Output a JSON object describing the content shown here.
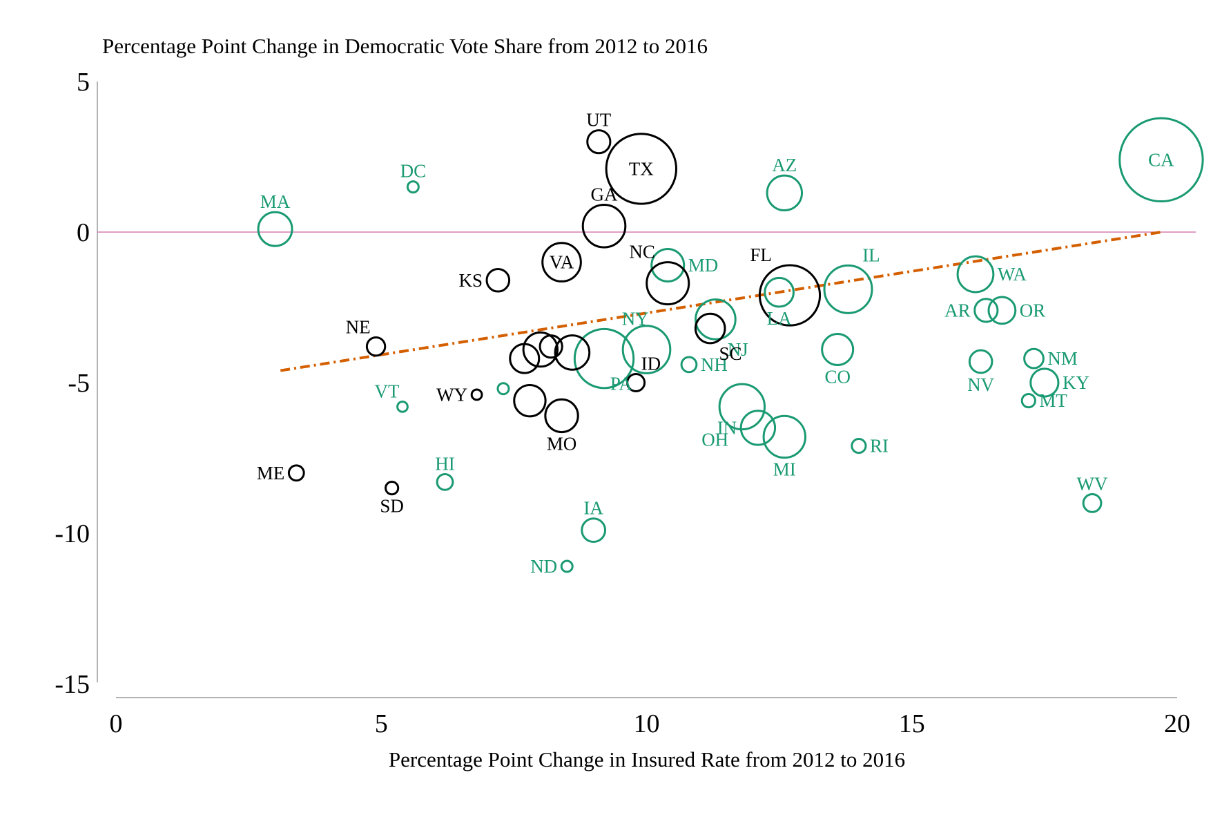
{
  "chart_data": {
    "type": "scatter",
    "title": "Percentage Point Change in Democratic Vote Share from 2012 to 2016",
    "xlabel": "Percentage Point Change in Insured Rate from 2012 to 2016",
    "ylabel": "",
    "xlim": [
      0,
      20
    ],
    "ylim": [
      -15,
      5
    ],
    "xticks": [
      "0",
      "5",
      "10",
      "15",
      "20"
    ],
    "yticks": [
      "5",
      "0",
      "-5",
      "-10",
      "-15"
    ],
    "colors": {
      "group_a": "#000000",
      "group_b": "#1a9a72",
      "trend": "#d45f00",
      "zero_line": "#d67fb0"
    },
    "trendline": {
      "x": [
        3.1,
        19.7
      ],
      "y": [
        -4.6,
        0.0
      ]
    },
    "points": [
      {
        "label": "MA",
        "x": 3.0,
        "y": 0.1,
        "size": 6.5,
        "group": "b",
        "label_pos": "above"
      },
      {
        "label": "DC",
        "x": 5.6,
        "y": 1.5,
        "size": 0.7,
        "group": "b",
        "label_pos": "above"
      },
      {
        "label": "VT",
        "x": 5.4,
        "y": -5.8,
        "size": 0.6,
        "group": "b",
        "label_pos": "above-left"
      },
      {
        "label": "HI",
        "x": 6.2,
        "y": -8.3,
        "size": 1.4,
        "group": "b",
        "label_pos": "above"
      },
      {
        "label": "IA",
        "x": 9.0,
        "y": -9.9,
        "size": 3.1,
        "group": "b",
        "label_pos": "above"
      },
      {
        "label": "ND",
        "x": 8.5,
        "y": -11.1,
        "size": 0.7,
        "group": "b",
        "label_pos": "left"
      },
      {
        "label": "NY",
        "x": 9.2,
        "y": -4.2,
        "size": 19.8,
        "group": "b",
        "label_pos": "above-right"
      },
      {
        "label": "PA",
        "x": 10.0,
        "y": -3.9,
        "size": 12.8,
        "group": "b",
        "label_pos": "below-left"
      },
      {
        "label": "MD",
        "x": 10.4,
        "y": -1.1,
        "size": 6.0,
        "group": "b",
        "label_pos": "right"
      },
      {
        "label": "NH",
        "x": 10.8,
        "y": -4.4,
        "size": 1.3,
        "group": "b",
        "label_pos": "right"
      },
      {
        "label": "NJ",
        "x": 11.3,
        "y": -2.9,
        "size": 9.0,
        "group": "b",
        "label_pos": "below-right"
      },
      {
        "label": "OH",
        "x": 11.8,
        "y": -5.8,
        "size": 11.6,
        "group": "b",
        "label_pos": "below-left"
      },
      {
        "label": "IN",
        "x": 12.1,
        "y": -6.5,
        "size": 6.6,
        "group": "b",
        "label_pos": "left"
      },
      {
        "label": "MI",
        "x": 12.6,
        "y": -6.8,
        "size": 9.9,
        "group": "b",
        "label_pos": "below"
      },
      {
        "label": "LA",
        "x": 12.5,
        "y": -2.0,
        "size": 4.7,
        "group": "b",
        "label_pos": "below"
      },
      {
        "label": "AZ",
        "x": 12.6,
        "y": 1.3,
        "size": 6.9,
        "group": "b",
        "label_pos": "above"
      },
      {
        "label": "CO",
        "x": 13.6,
        "y": -3.9,
        "size": 5.5,
        "group": "b",
        "label_pos": "below"
      },
      {
        "label": "IL",
        "x": 13.8,
        "y": -1.9,
        "size": 12.9,
        "group": "b",
        "label_pos": "above-right"
      },
      {
        "label": "RI",
        "x": 14.0,
        "y": -7.1,
        "size": 1.1,
        "group": "b",
        "label_pos": "right"
      },
      {
        "label": "WA",
        "x": 16.2,
        "y": -1.4,
        "size": 7.3,
        "group": "b",
        "label_pos": "right"
      },
      {
        "label": "AR",
        "x": 16.4,
        "y": -2.6,
        "size": 3.0,
        "group": "b",
        "label_pos": "left"
      },
      {
        "label": "OR",
        "x": 16.7,
        "y": -2.6,
        "size": 4.1,
        "group": "b",
        "label_pos": "right"
      },
      {
        "label": "NV",
        "x": 16.3,
        "y": -4.3,
        "size": 2.9,
        "group": "b",
        "label_pos": "below"
      },
      {
        "label": "NM",
        "x": 17.3,
        "y": -4.2,
        "size": 2.1,
        "group": "b",
        "label_pos": "right"
      },
      {
        "label": "MT",
        "x": 17.2,
        "y": -5.6,
        "size": 1.0,
        "group": "b",
        "label_pos": "right"
      },
      {
        "label": "KY",
        "x": 17.5,
        "y": -5.0,
        "size": 4.4,
        "group": "b",
        "label_pos": "right"
      },
      {
        "label": "WV",
        "x": 18.4,
        "y": -9.0,
        "size": 1.8,
        "group": "b",
        "label_pos": "above"
      },
      {
        "label": "CA",
        "x": 19.7,
        "y": 2.4,
        "size": 39.3,
        "group": "b",
        "label_pos": "center"
      },
      {
        "label": "",
        "x": 7.3,
        "y": -5.2,
        "size": 0.7,
        "group": "b",
        "label_pos": "none"
      },
      {
        "label": "ME",
        "x": 3.4,
        "y": -8.0,
        "size": 1.3,
        "group": "a",
        "label_pos": "left"
      },
      {
        "label": "SD",
        "x": 5.2,
        "y": -8.5,
        "size": 0.9,
        "group": "a",
        "label_pos": "below"
      },
      {
        "label": "NE",
        "x": 4.9,
        "y": -3.8,
        "size": 1.9,
        "group": "a",
        "label_pos": "above-left"
      },
      {
        "label": "WY",
        "x": 6.8,
        "y": -5.4,
        "size": 0.6,
        "group": "a",
        "label_pos": "left"
      },
      {
        "label": "KS",
        "x": 7.2,
        "y": -1.6,
        "size": 2.9,
        "group": "a",
        "label_pos": "left"
      },
      {
        "label": "MO",
        "x": 8.4,
        "y": -6.1,
        "size": 6.1,
        "group": "a",
        "label_pos": "below"
      },
      {
        "label": "",
        "x": 7.8,
        "y": -5.6,
        "size": 5.6,
        "group": "a",
        "label_pos": "none"
      },
      {
        "label": "",
        "x": 7.7,
        "y": -4.2,
        "size": 4.8,
        "group": "a",
        "label_pos": "none"
      },
      {
        "label": "",
        "x": 8.0,
        "y": -3.9,
        "size": 6.6,
        "group": "a",
        "label_pos": "none"
      },
      {
        "label": "",
        "x": 8.2,
        "y": -3.8,
        "size": 2.8,
        "group": "a",
        "label_pos": "none"
      },
      {
        "label": "",
        "x": 8.6,
        "y": -4.0,
        "size": 6.7,
        "group": "a",
        "label_pos": "none"
      },
      {
        "label": "VA",
        "x": 8.4,
        "y": -1.0,
        "size": 8.4,
        "group": "a",
        "label_pos": "center"
      },
      {
        "label": "UT",
        "x": 9.1,
        "y": 3.0,
        "size": 3.0,
        "group": "a",
        "label_pos": "above"
      },
      {
        "label": "GA",
        "x": 9.2,
        "y": 0.2,
        "size": 10.3,
        "group": "a",
        "label_pos": "above"
      },
      {
        "label": "TX",
        "x": 9.9,
        "y": 2.1,
        "size": 27.9,
        "group": "a",
        "label_pos": "center"
      },
      {
        "label": "NC",
        "x": 10.4,
        "y": -1.7,
        "size": 10.1,
        "group": "a",
        "label_pos": "above-left"
      },
      {
        "label": "ID",
        "x": 9.8,
        "y": -5.0,
        "size": 1.7,
        "group": "a",
        "label_pos": "above-right"
      },
      {
        "label": "SC",
        "x": 11.2,
        "y": -3.2,
        "size": 4.9,
        "group": "a",
        "label_pos": "below-right"
      },
      {
        "label": "FL",
        "x": 12.7,
        "y": -2.1,
        "size": 20.6,
        "group": "a",
        "label_pos": "above-left"
      }
    ]
  }
}
